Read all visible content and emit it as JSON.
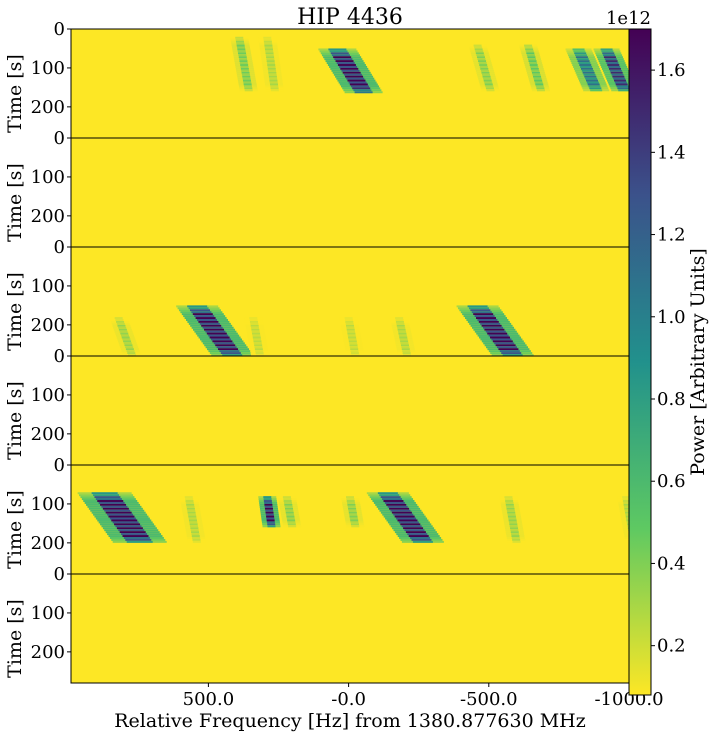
{
  "chart_data": {
    "type": "heatmap",
    "title": "HIP 4436",
    "xlabel": "Relative Frequency [Hz] from 1380.877630 MHz",
    "ylabel": "Time [s]",
    "colorbar": {
      "label": "Power [Arbitrary Units]",
      "multiplier": "1e12",
      "range": [
        0.08,
        1.7
      ],
      "ticks": [
        "0.2",
        "0.4",
        "0.6",
        "0.8",
        "1.0",
        "1.2",
        "1.4",
        "1.6"
      ],
      "tick_values": [
        0.2,
        0.4,
        0.6,
        0.8,
        1.0,
        1.2,
        1.4,
        1.6
      ],
      "colormap": "viridis",
      "colors": [
        "#fde725",
        "#5ec962",
        "#21918c",
        "#3b528b",
        "#440154"
      ]
    },
    "xlim": [
      990,
      -1000
    ],
    "x_ticks": [
      "500.0",
      "-0.0",
      "-500.0",
      "-1000.0"
    ],
    "x_tick_values": [
      500,
      0,
      -500,
      -1000
    ],
    "panels": [
      {
        "ylim": [
          0,
          280
        ],
        "y_ticks": [
          "0",
          "100",
          "200"
        ],
        "y_tick_values": [
          0,
          100,
          200
        ],
        "signals": [
          {
            "f0": 390,
            "t0": 20,
            "t1": 160,
            "drift": -0.05,
            "bw": 4,
            "peak": 0.45
          },
          {
            "f0": 290,
            "t0": 20,
            "t1": 160,
            "drift": -0.04,
            "bw": 4,
            "peak": 0.3
          },
          {
            "f0": 40,
            "t0": 50,
            "t1": 165,
            "drift": -0.17,
            "bw": 14,
            "peak": 1.7
          },
          {
            "f0": -460,
            "t0": 40,
            "t1": 160,
            "drift": -0.08,
            "bw": 4,
            "peak": 0.4
          },
          {
            "f0": -640,
            "t0": 40,
            "t1": 160,
            "drift": -0.08,
            "bw": 4,
            "peak": 0.5
          },
          {
            "f0": -820,
            "t0": 50,
            "t1": 160,
            "drift": -0.12,
            "bw": 8,
            "peak": 1.1
          },
          {
            "f0": -920,
            "t0": 50,
            "t1": 160,
            "drift": -0.12,
            "bw": 8,
            "peak": 1.5
          }
        ]
      },
      {
        "ylim": [
          0,
          280
        ],
        "y_ticks": [
          "0",
          "100",
          "200"
        ],
        "y_tick_values": [
          0,
          100,
          200
        ],
        "signals": []
      },
      {
        "ylim": [
          0,
          280
        ],
        "y_ticks": [
          "0",
          "100",
          "200"
        ],
        "y_tick_values": [
          0,
          100,
          200
        ],
        "signals": [
          {
            "f0": 540,
            "t0": 150,
            "t1": 280,
            "drift": -0.2,
            "bw": 16,
            "peak": 1.7
          },
          {
            "f0": 820,
            "t0": 180,
            "t1": 280,
            "drift": -0.1,
            "bw": 4,
            "peak": 0.35
          },
          {
            "f0": 340,
            "t0": 180,
            "t1": 280,
            "drift": -0.05,
            "bw": 4,
            "peak": 0.25
          },
          {
            "f0": 0,
            "t0": 180,
            "t1": 280,
            "drift": -0.05,
            "bw": 4,
            "peak": 0.25
          },
          {
            "f0": -180,
            "t0": 180,
            "t1": 280,
            "drift": -0.06,
            "bw": 4,
            "peak": 0.3
          },
          {
            "f0": -460,
            "t0": 150,
            "t1": 280,
            "drift": -0.2,
            "bw": 16,
            "peak": 1.7
          }
        ]
      },
      {
        "ylim": [
          0,
          280
        ],
        "y_ticks": [
          "0",
          "100",
          "200"
        ],
        "y_tick_values": [
          0,
          100,
          200
        ],
        "signals": []
      },
      {
        "ylim": [
          0,
          280
        ],
        "y_ticks": [
          "0",
          "100",
          "200"
        ],
        "y_tick_values": [
          0,
          100,
          200
        ],
        "signals": [
          {
            "f0": 870,
            "t0": 70,
            "t1": 200,
            "drift": -0.2,
            "bw": 22,
            "peak": 1.7
          },
          {
            "f0": 570,
            "t0": 80,
            "t1": 200,
            "drift": -0.05,
            "bw": 4,
            "peak": 0.3
          },
          {
            "f0": 290,
            "t0": 80,
            "t1": 160,
            "drift": -0.04,
            "bw": 4,
            "peak": 1.7
          },
          {
            "f0": 220,
            "t0": 80,
            "t1": 160,
            "drift": -0.05,
            "bw": 4,
            "peak": 0.4
          },
          {
            "f0": -5,
            "t0": 80,
            "t1": 160,
            "drift": -0.05,
            "bw": 4,
            "peak": 0.4
          },
          {
            "f0": -140,
            "t0": 70,
            "t1": 200,
            "drift": -0.2,
            "bw": 16,
            "peak": 1.7
          },
          {
            "f0": -570,
            "t0": 80,
            "t1": 200,
            "drift": -0.05,
            "bw": 4,
            "peak": 0.35
          },
          {
            "f0": -990,
            "t0": 80,
            "t1": 200,
            "drift": -0.05,
            "bw": 4,
            "peak": 0.3
          }
        ]
      },
      {
        "ylim": [
          0,
          280
        ],
        "y_ticks": [
          "0",
          "100",
          "200"
        ],
        "y_tick_values": [
          0,
          100,
          200
        ],
        "signals": []
      }
    ]
  }
}
